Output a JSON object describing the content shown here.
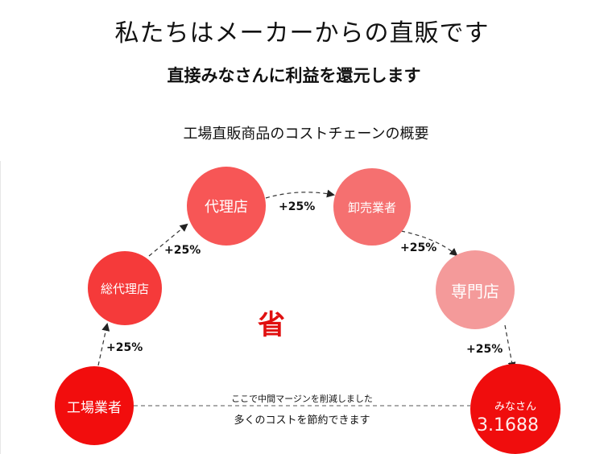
{
  "header": {
    "title": "私たちはメーカーからの直販です",
    "subtitle": "直接みなさんに利益を還元します",
    "overview": "工場直販商品のコストチェーンの概要"
  },
  "nodes": {
    "factory": "工場業者",
    "general_agent": "総代理店",
    "agent": "代理店",
    "wholesaler": "卸売業者",
    "specialty_store": "専門店",
    "customer": "みなさん"
  },
  "markups": [
    "+25%",
    "+25%",
    "+25%",
    "+25%",
    "+25%"
  ],
  "center_label": "省",
  "bottom_note": {
    "line1": "ここで中間マージンを削減しました",
    "line2": "多くのコストを節約できます"
  },
  "watermark": "3.1688",
  "colors": {
    "factory": "#f20d0d",
    "general_agent": "#f53a3a",
    "agent": "#f75656",
    "wholesaler": "#f57070",
    "specialty_store": "#f49a9a",
    "customer": "#f00d0d",
    "center_mark": "#e01010"
  }
}
